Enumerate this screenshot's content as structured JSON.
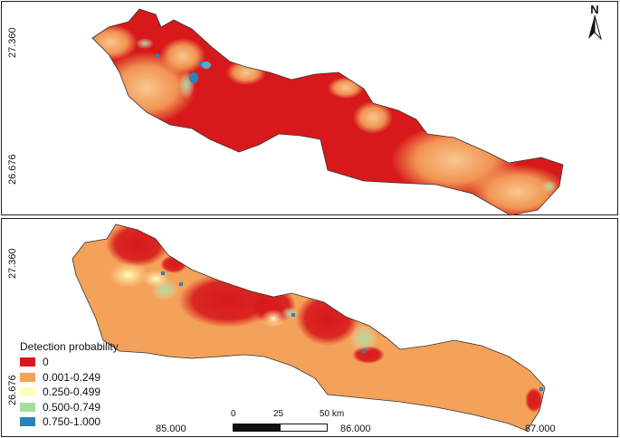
{
  "panels": [
    {
      "name": "top",
      "lat_labels": [
        "27.360",
        "26.676"
      ]
    },
    {
      "name": "bottom",
      "lat_labels": [
        "27.360",
        "26.676"
      ],
      "lon_labels": [
        "85.000",
        "86.000",
        "87.000"
      ]
    }
  ],
  "north_arrow": {
    "label": "N"
  },
  "legend": {
    "title": "Detection probability",
    "items": [
      {
        "label": "0",
        "color": "#d7191c"
      },
      {
        "label": "0.001-0.249",
        "color": "#f4a259"
      },
      {
        "label": "0.250-0.499",
        "color": "#ffffbf"
      },
      {
        "label": "0.500-0.749",
        "color": "#a6dba0"
      },
      {
        "label": "0.750-1.000",
        "color": "#2b83ba"
      }
    ]
  },
  "scale_bar": {
    "labels": [
      "0",
      "25",
      "50 km"
    ]
  }
}
